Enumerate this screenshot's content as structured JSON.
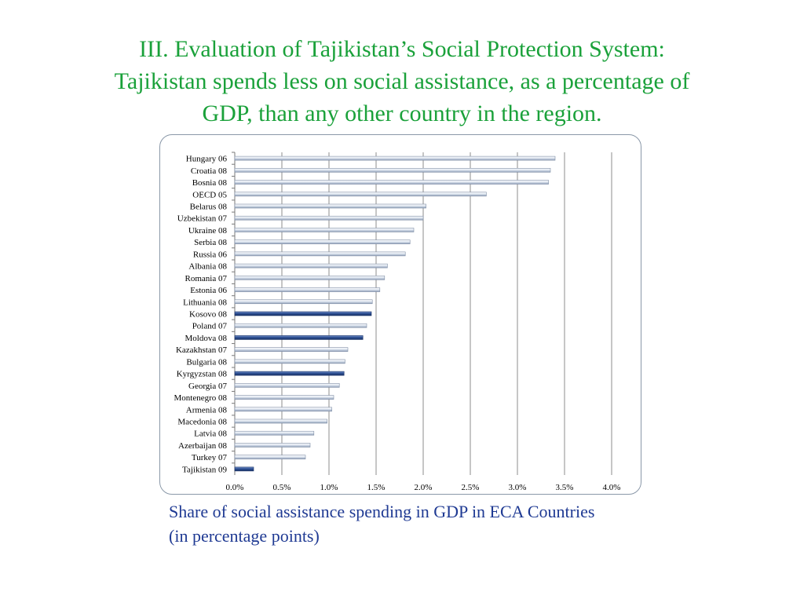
{
  "slide": {
    "title_line1": "III. Evaluation of Tajikistan’s Social Protection System:",
    "title_line2": "Tajikistan spends less on social assistance, as a percentage of",
    "title_line3": "GDP, than any other country in the region.",
    "stray_mark": ",",
    "caption": "Share of social assistance spending in GDP in ECA Countries (in percentage points)"
  },
  "colors": {
    "title": "#1aa13a",
    "caption": "#1f3a93",
    "bar_default": "#c9d4e4",
    "bar_highlight": "#2c4f93",
    "gridline": "#8d8d8d"
  },
  "chart_data": {
    "type": "bar",
    "orientation": "horizontal",
    "title": "",
    "xlabel": "",
    "ylabel": "",
    "xlim": [
      0,
      4.0
    ],
    "grid": true,
    "legend": "none",
    "tick_values": [
      0,
      0.5,
      1.0,
      1.5,
      2.0,
      2.5,
      3.0,
      3.5,
      4.0
    ],
    "tick_labels": [
      "0.0%",
      "0.5%",
      "1.0%",
      "1.5%",
      "2.0%",
      "2.5%",
      "3.0%",
      "3.5%",
      "4.0%"
    ],
    "categories": [
      "Hungary 06",
      "Croatia 08",
      "Bosnia 08",
      "OECD 05",
      "Belarus 08",
      "Uzbekistan 07",
      "Ukraine 08",
      "Serbia 08",
      "Russia 06",
      "Albania 08",
      "Romania 07",
      "Estonia 06",
      "Lithuania 08",
      "Kosovo 08",
      "Poland 07",
      "Moldova 08",
      "Kazakhstan 07",
      "Bulgaria 08",
      "Kyrgyzstan 08",
      "Georgia 07",
      "Montenegro 08",
      "Armenia 08",
      "Macedonia 08",
      "Latvia 08",
      "Azerbaijan 08",
      "Turkey 07",
      "Tajikistan 09"
    ],
    "values": [
      3.4,
      3.35,
      3.33,
      2.67,
      2.03,
      2.0,
      1.9,
      1.86,
      1.81,
      1.62,
      1.59,
      1.54,
      1.46,
      1.45,
      1.4,
      1.36,
      1.2,
      1.17,
      1.16,
      1.11,
      1.05,
      1.03,
      0.98,
      0.84,
      0.8,
      0.75,
      0.2
    ],
    "highlighted": [
      "Kosovo 08",
      "Moldova 08",
      "Kyrgyzstan 08",
      "Tajikistan 09"
    ]
  }
}
